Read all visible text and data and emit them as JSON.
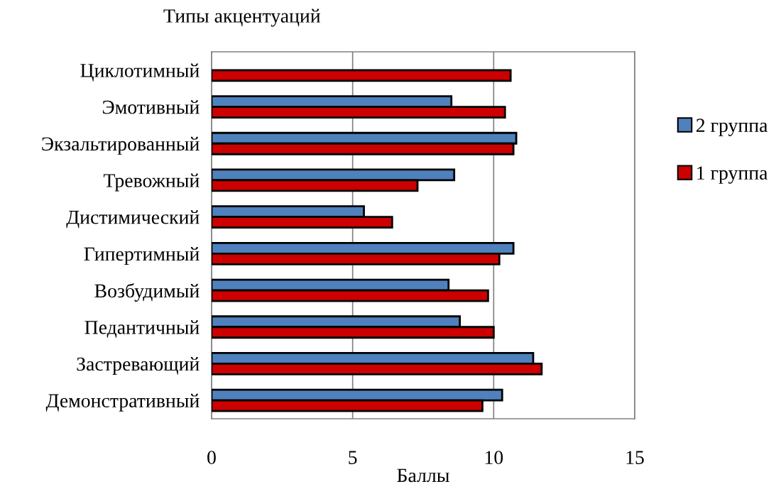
{
  "chart_data": {
    "type": "bar",
    "orientation": "horizontal",
    "title": "Типы акцентуаций",
    "xlabel": "Баллы",
    "categories": [
      "Циклотимный",
      "Эмотивный",
      "Экзальтированный",
      "Тревожный",
      "Дистимический",
      "Гипертимный",
      "Возбудимый",
      "Педантичный",
      "Застревающий",
      "Демонстративный"
    ],
    "series": [
      {
        "name": "2 группа",
        "color": "#4f81bd",
        "values": [
          null,
          8.5,
          10.8,
          8.6,
          5.4,
          10.7,
          8.4,
          8.8,
          11.4,
          10.3
        ]
      },
      {
        "name": "1 группа",
        "color": "#cc0000",
        "values": [
          10.6,
          10.4,
          10.7,
          7.3,
          6.4,
          10.2,
          9.8,
          10.0,
          11.7,
          9.6
        ]
      }
    ],
    "xlim": [
      0,
      15
    ],
    "xticks": [
      0,
      5,
      10,
      15
    ],
    "grid": "x",
    "legend": "right"
  }
}
